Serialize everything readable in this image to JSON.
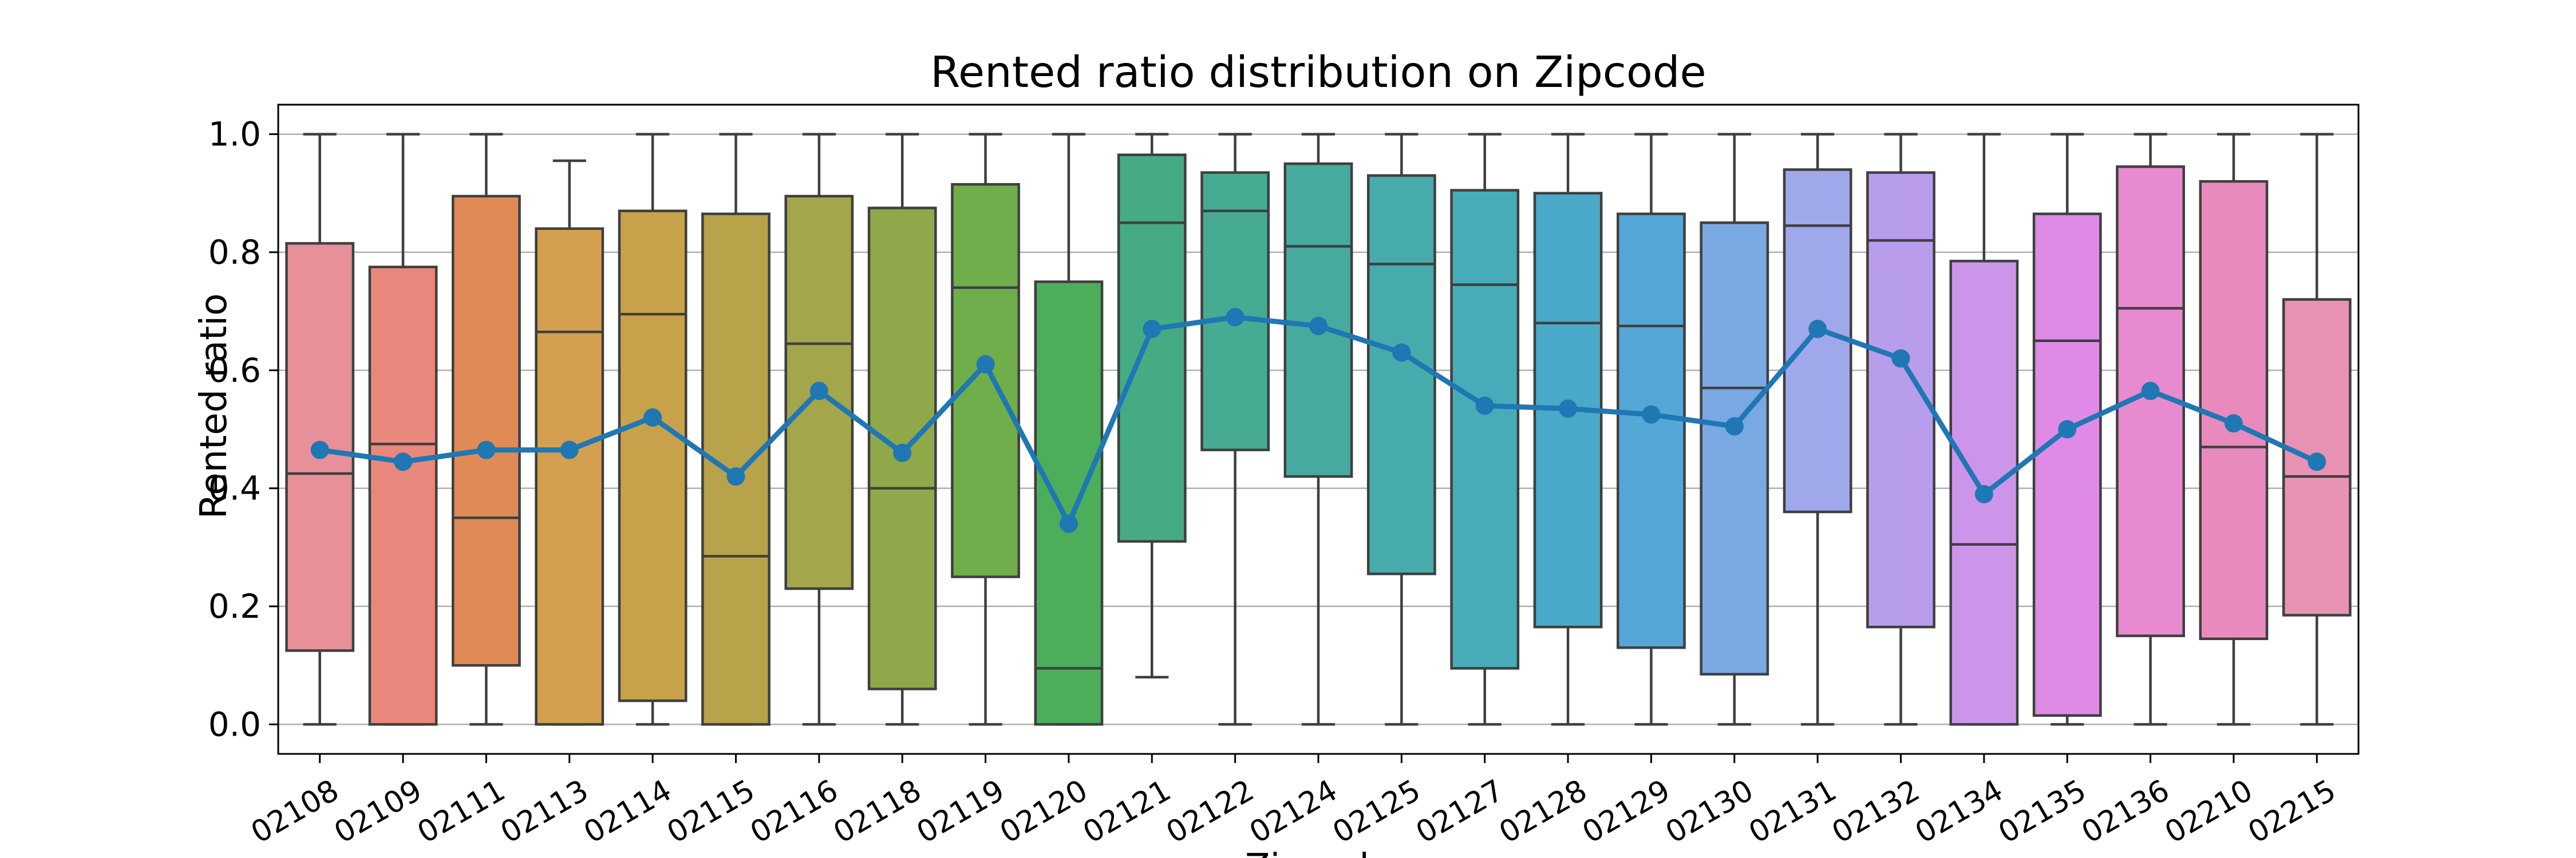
{
  "chart_data": {
    "type": "box",
    "title": "Rented ratio distribution on Zipcode",
    "xlabel": "Zipcode",
    "ylabel": "Rented ratio",
    "ylim": [
      -0.05,
      1.05
    ],
    "yticks": [
      0.0,
      0.2,
      0.4,
      0.6,
      0.8,
      1.0
    ],
    "ytick_labels": [
      "0.0",
      "0.2",
      "0.4",
      "0.6",
      "0.8",
      "1.0"
    ],
    "grid": "horizontal",
    "categories": [
      "02108",
      "02109",
      "02111",
      "02113",
      "02114",
      "02115",
      "02116",
      "02118",
      "02119",
      "02120",
      "02121",
      "02122",
      "02124",
      "02125",
      "02127",
      "02128",
      "02129",
      "02130",
      "02131",
      "02132",
      "02134",
      "02135",
      "02136",
      "02210",
      "02215"
    ],
    "boxes": [
      {
        "whisker_low": 0.0,
        "q1": 0.125,
        "median": 0.425,
        "q3": 0.815,
        "whisker_high": 1.0
      },
      {
        "whisker_low": 0.0,
        "q1": 0.0,
        "median": 0.475,
        "q3": 0.775,
        "whisker_high": 1.0
      },
      {
        "whisker_low": 0.0,
        "q1": 0.1,
        "median": 0.35,
        "q3": 0.895,
        "whisker_high": 1.0
      },
      {
        "whisker_low": 0.0,
        "q1": 0.0,
        "median": 0.665,
        "q3": 0.84,
        "whisker_high": 0.955
      },
      {
        "whisker_low": 0.0,
        "q1": 0.04,
        "median": 0.695,
        "q3": 0.87,
        "whisker_high": 1.0
      },
      {
        "whisker_low": 0.0,
        "q1": 0.0,
        "median": 0.285,
        "q3": 0.865,
        "whisker_high": 1.0
      },
      {
        "whisker_low": 0.0,
        "q1": 0.23,
        "median": 0.645,
        "q3": 0.895,
        "whisker_high": 1.0
      },
      {
        "whisker_low": 0.0,
        "q1": 0.06,
        "median": 0.4,
        "q3": 0.875,
        "whisker_high": 1.0
      },
      {
        "whisker_low": 0.0,
        "q1": 0.25,
        "median": 0.74,
        "q3": 0.915,
        "whisker_high": 1.0
      },
      {
        "whisker_low": 0.0,
        "q1": 0.0,
        "median": 0.095,
        "q3": 0.75,
        "whisker_high": 1.0
      },
      {
        "whisker_low": 0.08,
        "q1": 0.31,
        "median": 0.85,
        "q3": 0.965,
        "whisker_high": 1.0
      },
      {
        "whisker_low": 0.0,
        "q1": 0.465,
        "median": 0.87,
        "q3": 0.935,
        "whisker_high": 1.0
      },
      {
        "whisker_low": 0.0,
        "q1": 0.42,
        "median": 0.81,
        "q3": 0.95,
        "whisker_high": 1.0
      },
      {
        "whisker_low": 0.0,
        "q1": 0.255,
        "median": 0.78,
        "q3": 0.93,
        "whisker_high": 1.0
      },
      {
        "whisker_low": 0.0,
        "q1": 0.095,
        "median": 0.745,
        "q3": 0.905,
        "whisker_high": 1.0
      },
      {
        "whisker_low": 0.0,
        "q1": 0.165,
        "median": 0.68,
        "q3": 0.9,
        "whisker_high": 1.0
      },
      {
        "whisker_low": 0.0,
        "q1": 0.13,
        "median": 0.675,
        "q3": 0.865,
        "whisker_high": 1.0
      },
      {
        "whisker_low": 0.0,
        "q1": 0.085,
        "median": 0.57,
        "q3": 0.85,
        "whisker_high": 1.0
      },
      {
        "whisker_low": 0.0,
        "q1": 0.36,
        "median": 0.845,
        "q3": 0.94,
        "whisker_high": 1.0
      },
      {
        "whisker_low": 0.0,
        "q1": 0.165,
        "median": 0.82,
        "q3": 0.935,
        "whisker_high": 1.0
      },
      {
        "whisker_low": 0.0,
        "q1": 0.0,
        "median": 0.305,
        "q3": 0.785,
        "whisker_high": 1.0
      },
      {
        "whisker_low": 0.0,
        "q1": 0.015,
        "median": 0.65,
        "q3": 0.865,
        "whisker_high": 1.0
      },
      {
        "whisker_low": 0.0,
        "q1": 0.15,
        "median": 0.705,
        "q3": 0.945,
        "whisker_high": 1.0
      },
      {
        "whisker_low": 0.0,
        "q1": 0.145,
        "median": 0.47,
        "q3": 0.92,
        "whisker_high": 1.0
      },
      {
        "whisker_low": 0.0,
        "q1": 0.185,
        "median": 0.42,
        "q3": 0.72,
        "whisker_high": 1.0
      }
    ],
    "box_colors": [
      "#e8909a",
      "#e8887c",
      "#e08a55",
      "#d2a04f",
      "#c8a24a",
      "#b8a34a",
      "#a3a64a",
      "#8fa84a",
      "#6fae4a",
      "#4cad5a",
      "#46ab82",
      "#46ab92",
      "#47aa9e",
      "#47aaab",
      "#48abb9",
      "#4aa9c9",
      "#55a7d7",
      "#7aa8e3",
      "#a0a8ec",
      "#b89ded",
      "#cc95ea",
      "#df8ae6",
      "#e88acf",
      "#e88bbc",
      "#e892b3"
    ],
    "series": [
      {
        "type": "line",
        "values": [
          0.465,
          0.445,
          0.465,
          0.465,
          0.52,
          0.42,
          0.565,
          0.46,
          0.61,
          0.34,
          0.67,
          0.69,
          0.675,
          0.63,
          0.54,
          0.535,
          0.525,
          0.505,
          0.67,
          0.62,
          0.39,
          0.5,
          0.565,
          0.51,
          0.445
        ]
      }
    ],
    "line_color": "#1f77b4"
  }
}
